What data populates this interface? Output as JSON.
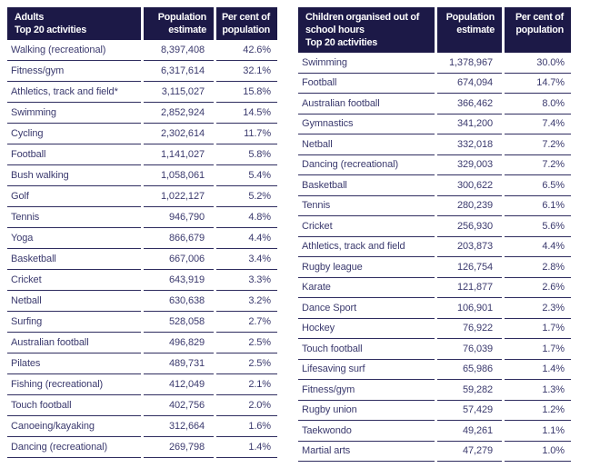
{
  "colors": {
    "header_bg": "#1c1947",
    "header_text": "#ffffff",
    "body_text": "#3b3a6e",
    "row_line": "#2e2c5f",
    "page_bg": "#ffffff"
  },
  "tables": [
    {
      "name": "adults",
      "title_line1": "Adults",
      "title_line2": "Top 20 activities",
      "col_population": "Population estimate",
      "col_percent": "Per cent of population",
      "rows": [
        [
          "Walking (recreational)",
          "8,397,408",
          "42.6%"
        ],
        [
          "Fitness/gym",
          "6,317,614",
          "32.1%"
        ],
        [
          "Athletics, track and field*",
          "3,115,027",
          "15.8%"
        ],
        [
          "Swimming",
          "2,852,924",
          "14.5%"
        ],
        [
          "Cycling",
          "2,302,614",
          "11.7%"
        ],
        [
          "Football",
          "1,141,027",
          "5.8%"
        ],
        [
          "Bush walking",
          "1,058,061",
          "5.4%"
        ],
        [
          "Golf",
          "1,022,127",
          "5.2%"
        ],
        [
          "Tennis",
          "946,790",
          "4.8%"
        ],
        [
          "Yoga",
          "866,679",
          "4.4%"
        ],
        [
          "Basketball",
          "667,006",
          "3.4%"
        ],
        [
          "Cricket",
          "643,919",
          "3.3%"
        ],
        [
          "Netball",
          "630,638",
          "3.2%"
        ],
        [
          "Surfing",
          "528,058",
          "2.7%"
        ],
        [
          "Australian football",
          "496,829",
          "2.5%"
        ],
        [
          "Pilates",
          "489,731",
          "2.5%"
        ],
        [
          "Fishing (recreational)",
          "412,049",
          "2.1%"
        ],
        [
          "Touch football",
          "402,756",
          "2.0%"
        ],
        [
          "Canoeing/kayaking",
          "312,664",
          "1.6%"
        ],
        [
          "Dancing (recreational)",
          "269,798",
          "1.4%"
        ]
      ]
    },
    {
      "name": "children",
      "title_line1": "Children organised out of school hours",
      "title_line2": "Top 20 activities",
      "col_population": "Population estimate",
      "col_percent": "Per cent of population",
      "rows": [
        [
          "Swimming",
          "1,378,967",
          "30.0%"
        ],
        [
          "Football",
          "674,094",
          "14.7%"
        ],
        [
          "Australian football",
          "366,462",
          "8.0%"
        ],
        [
          "Gymnastics",
          "341,200",
          "7.4%"
        ],
        [
          "Netball",
          "332,018",
          "7.2%"
        ],
        [
          "Dancing (recreational)",
          "329,003",
          "7.2%"
        ],
        [
          "Basketball",
          "300,622",
          "6.5%"
        ],
        [
          "Tennis",
          "280,239",
          "6.1%"
        ],
        [
          "Cricket",
          "256,930",
          "5.6%"
        ],
        [
          "Athletics, track and field",
          "203,873",
          "4.4%"
        ],
        [
          "Rugby league",
          "126,754",
          "2.8%"
        ],
        [
          "Karate",
          "121,877",
          "2.6%"
        ],
        [
          "Dance Sport",
          "106,901",
          "2.3%"
        ],
        [
          "Hockey",
          "76,922",
          "1.7%"
        ],
        [
          "Touch football",
          "76,039",
          "1.7%"
        ],
        [
          "Lifesaving surf",
          "65,986",
          "1.4%"
        ],
        [
          "Fitness/gym",
          "59,282",
          "1.3%"
        ],
        [
          "Rugby union",
          "57,429",
          "1.2%"
        ],
        [
          "Taekwondo",
          "49,261",
          "1.1%"
        ],
        [
          "Martial arts",
          "47,279",
          "1.0%"
        ]
      ]
    }
  ]
}
